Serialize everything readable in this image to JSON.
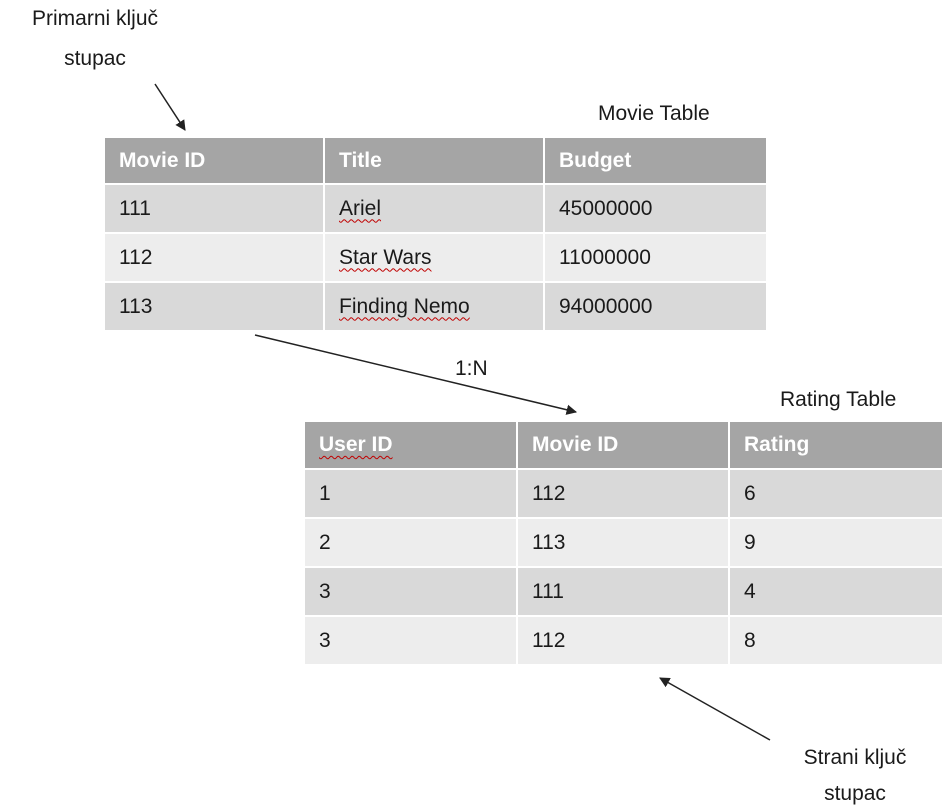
{
  "primary_key_label": {
    "lines": [
      "Primarni ključ",
      "stupac"
    ]
  },
  "movie_table": {
    "title": "Movie Table",
    "columns": [
      "Movie ID",
      "Title",
      "Budget"
    ],
    "rows": [
      [
        "111",
        "Ariel",
        "45000000"
      ],
      [
        "112",
        "Star Wars",
        "11000000"
      ],
      [
        "113",
        "Finding Nemo",
        "94000000"
      ]
    ]
  },
  "relation_label": "1:N",
  "rating_table": {
    "title": "Rating Table",
    "columns": [
      "User ID",
      "Movie ID",
      "Rating"
    ],
    "rows": [
      [
        "1",
        "112",
        "6"
      ],
      [
        "2",
        "113",
        "9"
      ],
      [
        "3",
        "111",
        "4"
      ],
      [
        "3",
        "112",
        "8"
      ]
    ]
  },
  "foreign_key_label": {
    "lines": [
      "Strani ključ",
      "stupac"
    ]
  }
}
